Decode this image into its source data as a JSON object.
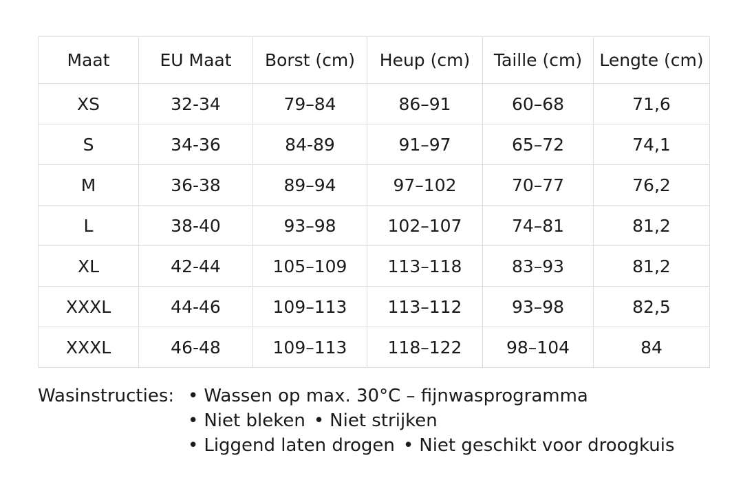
{
  "table": {
    "header": [
      "Maat",
      "EU Maat",
      "Borst (cm)",
      "Heup (cm)",
      "Taille (cm)",
      "Lengte (cm)"
    ],
    "rows": [
      [
        "XS",
        "32-34",
        "79–84",
        "86–91",
        "60–68",
        "71,6"
      ],
      [
        "S",
        "34-36",
        "84-89",
        "91–97",
        "65–72",
        "74,1"
      ],
      [
        "M",
        "36-38",
        "89–94",
        "97–102",
        "70–77",
        "76,2"
      ],
      [
        "L",
        "38-40",
        "93–98",
        "102–107",
        "74–81",
        "81,2"
      ],
      [
        "XL",
        "42-44",
        "105–109",
        "113–118",
        "83–93",
        "81,2"
      ],
      [
        "XXXL",
        "44-46",
        "109–113",
        "113–112",
        "93–98",
        "82,5"
      ],
      [
        "XXXL",
        "46-48",
        "109–113",
        "118–122",
        "98–104",
        "84"
      ]
    ]
  },
  "wash": {
    "label": "Wasinstructies:",
    "lines": [
      [
        "Wassen op max. 30°C – fijnwasprogramma"
      ],
      [
        "Niet bleken",
        "Niet strijken"
      ],
      [
        "Liggend laten drogen",
        "Niet geschikt voor droogkuis"
      ]
    ]
  }
}
